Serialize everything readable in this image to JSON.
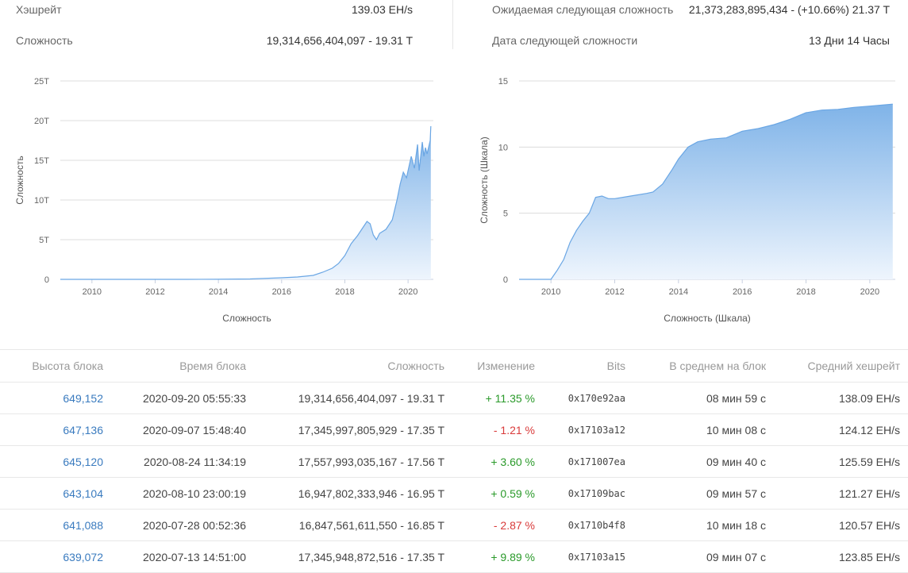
{
  "stats": {
    "hashrate_label": "Хэшрейт",
    "hashrate_value": "139.03 EH/s",
    "difficulty_label": "Сложность",
    "difficulty_value": "19,314,656,404,097 - 19.31 T",
    "next_difficulty_label": "Ожидаемая следующая сложность",
    "next_difficulty_value": "21,373,283,895,434 - (+10.66%) 21.37 T",
    "next_date_label": "Дата следующей сложности",
    "next_date_value": "13 Дни 14 Часы"
  },
  "colors": {
    "area_top": "#7fb3e8",
    "area_bottom": "#eef5fd",
    "line": "#6aa6e4",
    "up": "#2a9a2a",
    "down": "#d93a3a",
    "link": "#3a7bbf"
  },
  "chart_data": [
    {
      "type": "area",
      "title": "",
      "xlabel": "Сложность",
      "ylabel": "Сложность",
      "xlim": [
        2009.0,
        2020.8
      ],
      "ylim": [
        0,
        25
      ],
      "y_ticks": [
        0,
        5,
        10,
        15,
        20,
        25
      ],
      "y_tick_labels": [
        "0",
        "5T",
        "10T",
        "15T",
        "20T",
        "25T"
      ],
      "x_ticks": [
        2010,
        2012,
        2014,
        2016,
        2018,
        2020
      ],
      "x_tick_labels": [
        "2010",
        "2012",
        "2014",
        "2016",
        "2018",
        "2020"
      ],
      "grid": true,
      "x": [
        2009.0,
        2013.0,
        2014.0,
        2015.0,
        2016.0,
        2016.5,
        2017.0,
        2017.3,
        2017.6,
        2017.8,
        2018.0,
        2018.2,
        2018.4,
        2018.55,
        2018.7,
        2018.8,
        2018.9,
        2019.0,
        2019.1,
        2019.3,
        2019.5,
        2019.65,
        2019.75,
        2019.85,
        2019.95,
        2020.1,
        2020.2,
        2020.3,
        2020.35,
        2020.45,
        2020.5,
        2020.55,
        2020.6,
        2020.7,
        2020.72
      ],
      "values": [
        0,
        0,
        0.01,
        0.05,
        0.2,
        0.3,
        0.5,
        0.9,
        1.4,
        2.0,
        3.0,
        4.5,
        5.5,
        6.4,
        7.3,
        7.0,
        5.6,
        5.0,
        5.8,
        6.3,
        7.5,
        10.0,
        12.0,
        13.5,
        12.8,
        15.5,
        14.0,
        17.0,
        13.7,
        17.3,
        15.5,
        16.6,
        15.8,
        17.5,
        19.3
      ]
    },
    {
      "type": "area",
      "title": "",
      "xlabel": "Сложность (Шкала)",
      "ylabel": "Сложность (Шкала)",
      "xlim": [
        2009.0,
        2020.8
      ],
      "ylim": [
        0,
        15
      ],
      "y_ticks": [
        0,
        5,
        10,
        15
      ],
      "y_tick_labels": [
        "0",
        "5",
        "10",
        "15"
      ],
      "x_ticks": [
        2010,
        2012,
        2014,
        2016,
        2018,
        2020
      ],
      "x_tick_labels": [
        "2010",
        "2012",
        "2014",
        "2016",
        "2018",
        "2020"
      ],
      "grid": true,
      "x": [
        2009.0,
        2010.0,
        2010.2,
        2010.4,
        2010.6,
        2010.8,
        2011.0,
        2011.2,
        2011.4,
        2011.6,
        2011.8,
        2012.0,
        2012.5,
        2013.0,
        2013.2,
        2013.5,
        2013.8,
        2014.0,
        2014.3,
        2014.6,
        2015.0,
        2015.5,
        2016.0,
        2016.5,
        2017.0,
        2017.5,
        2018.0,
        2018.5,
        2019.0,
        2019.5,
        2020.0,
        2020.5,
        2020.72
      ],
      "values": [
        0,
        0,
        0.7,
        1.5,
        2.8,
        3.7,
        4.4,
        5.0,
        6.2,
        6.3,
        6.1,
        6.1,
        6.3,
        6.5,
        6.6,
        7.2,
        8.3,
        9.1,
        10.0,
        10.4,
        10.6,
        10.7,
        11.2,
        11.4,
        11.7,
        12.1,
        12.6,
        12.8,
        12.85,
        13.0,
        13.1,
        13.2,
        13.25
      ]
    }
  ],
  "table": {
    "headers": [
      "Высота блока",
      "Время блока",
      "Сложность",
      "Изменение",
      "Bits",
      "В среднем на блок",
      "Средний хешрейт"
    ],
    "rows": [
      {
        "height": "649,152",
        "time": "2020-09-20 05:55:33",
        "difficulty": "19,314,656,404,097 - 19.31 T",
        "change": "+ 11.35 %",
        "dir": "up",
        "bits": "0x170e92aa",
        "avg": "08 мин 59 с",
        "hashrate": "138.09 EH/s"
      },
      {
        "height": "647,136",
        "time": "2020-09-07 15:48:40",
        "difficulty": "17,345,997,805,929 - 17.35 T",
        "change": "- 1.21 %",
        "dir": "down",
        "bits": "0x17103a12",
        "avg": "10 мин 08 с",
        "hashrate": "124.12 EH/s"
      },
      {
        "height": "645,120",
        "time": "2020-08-24 11:34:19",
        "difficulty": "17,557,993,035,167 - 17.56 T",
        "change": "+ 3.60 %",
        "dir": "up",
        "bits": "0x171007ea",
        "avg": "09 мин 40 с",
        "hashrate": "125.59 EH/s"
      },
      {
        "height": "643,104",
        "time": "2020-08-10 23:00:19",
        "difficulty": "16,947,802,333,946 - 16.95 T",
        "change": "+ 0.59 %",
        "dir": "up",
        "bits": "0x17109bac",
        "avg": "09 мин 57 с",
        "hashrate": "121.27 EH/s"
      },
      {
        "height": "641,088",
        "time": "2020-07-28 00:52:36",
        "difficulty": "16,847,561,611,550 - 16.85 T",
        "change": "- 2.87 %",
        "dir": "down",
        "bits": "0x1710b4f8",
        "avg": "10 мин 18 с",
        "hashrate": "120.57 EH/s"
      },
      {
        "height": "639,072",
        "time": "2020-07-13 14:51:00",
        "difficulty": "17,345,948,872,516 - 17.35 T",
        "change": "+ 9.89 %",
        "dir": "up",
        "bits": "0x17103a15",
        "avg": "09 мин 07 с",
        "hashrate": "123.85 EH/s"
      }
    ]
  }
}
